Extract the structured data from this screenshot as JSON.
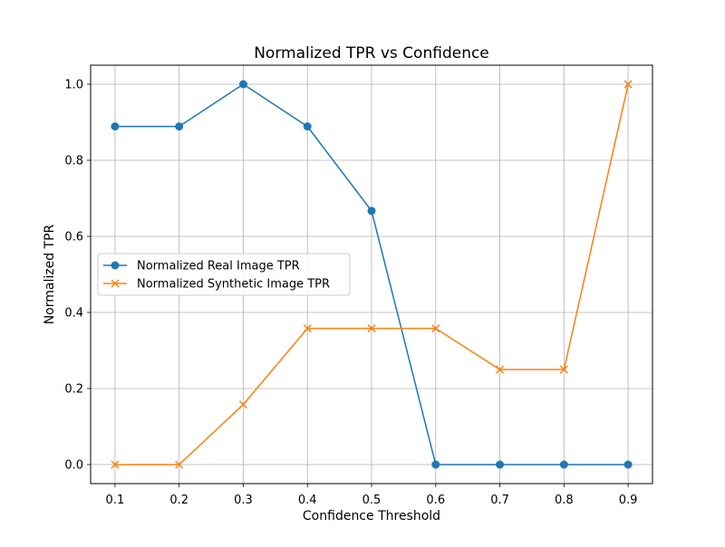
{
  "chart_data": {
    "type": "line",
    "title": "Normalized TPR vs Confidence",
    "xlabel": "Confidence Threshold",
    "ylabel": "Normalized TPR",
    "x": [
      0.1,
      0.2,
      0.3,
      0.4,
      0.5,
      0.6,
      0.7,
      0.8,
      0.9
    ],
    "xticks": [
      "0.1",
      "0.2",
      "0.3",
      "0.4",
      "0.5",
      "0.6",
      "0.7",
      "0.8",
      "0.9"
    ],
    "yticks": [
      "0.0",
      "0.2",
      "0.4",
      "0.6",
      "0.8",
      "1.0"
    ],
    "xlim": [
      0.062,
      0.938
    ],
    "ylim": [
      -0.05,
      1.05
    ],
    "grid": true,
    "legend_position": "center-left",
    "series": [
      {
        "name": "Normalized Real Image TPR",
        "color": "#1f77b4",
        "marker": "circle",
        "values": [
          0.889,
          0.889,
          1.0,
          0.889,
          0.667,
          0.0,
          0.0,
          0.0,
          0.0
        ]
      },
      {
        "name": "Normalized Synthetic Image TPR",
        "color": "#ff7f0e",
        "marker": "x",
        "values": [
          0.0,
          0.0,
          0.158,
          0.358,
          0.358,
          0.358,
          0.25,
          0.25,
          1.0
        ]
      }
    ]
  }
}
